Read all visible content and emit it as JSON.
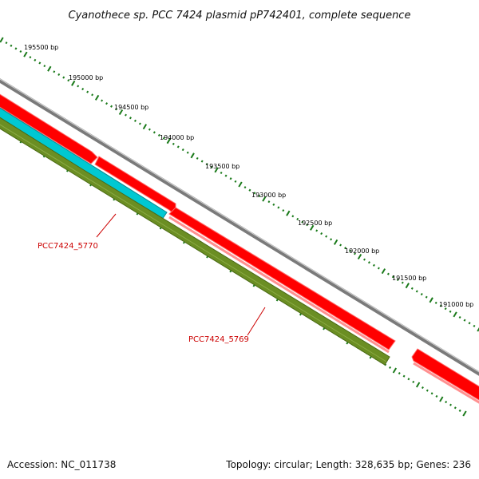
{
  "title": "Cyanothece sp. PCC 7424 plasmid pP742401, complete sequence",
  "footer": {
    "accession": "Accession: NC_011738",
    "summary": "Topology: circular; Length: 328,635 bp; Genes: 236"
  },
  "colors": {
    "backbone": "#8a8a8a",
    "cds": "#ff0000",
    "cds_shadow": "#ff8080",
    "gene_teal": "#00c8d2",
    "gene_olive": "#6b8e23",
    "tick": "#1a7a1a",
    "label": "#cc0000"
  },
  "ticks": [
    {
      "label": "195500 bp"
    },
    {
      "label": "195000 bp"
    },
    {
      "label": "194500 bp"
    },
    {
      "label": "194000 bp"
    },
    {
      "label": "193500 bp"
    },
    {
      "label": "193000 bp"
    },
    {
      "label": "192500 bp"
    },
    {
      "label": "192000 bp"
    },
    {
      "label": "191500 bp"
    },
    {
      "label": "191000 bp"
    }
  ],
  "gene_labels": [
    {
      "label": "PCC7424_5770"
    },
    {
      "label": "PCC7424_5769"
    }
  ]
}
